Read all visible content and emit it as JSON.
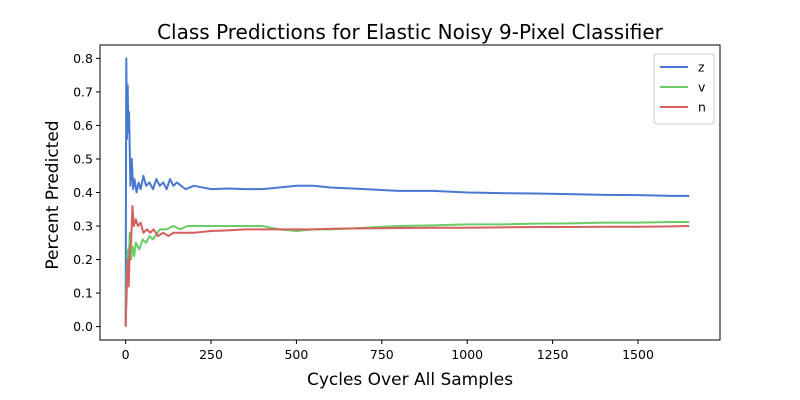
{
  "chart_data": {
    "type": "line",
    "title": "Class Predictions for Elastic Noisy 9-Pixel Classifier",
    "xlabel": "Cycles Over All Samples",
    "ylabel": "Percent Predicted",
    "xlim": [
      -75,
      1740
    ],
    "ylim": [
      -0.04,
      0.84
    ],
    "xticks": [
      0,
      250,
      500,
      750,
      1000,
      1250,
      1500
    ],
    "yticks": [
      0.0,
      0.1,
      0.2,
      0.3,
      0.4,
      0.5,
      0.6,
      0.7,
      0.8
    ],
    "xtick_labels": [
      "0",
      "250",
      "500",
      "750",
      "1000",
      "1250",
      "1500"
    ],
    "ytick_labels": [
      "0.0",
      "0.1",
      "0.2",
      "0.3",
      "0.4",
      "0.5",
      "0.6",
      "0.7",
      "0.8"
    ],
    "grid": false,
    "legend_position": "top-right",
    "series": [
      {
        "name": "z",
        "color": "#4878cf",
        "points": [
          [
            0,
            0.0
          ],
          [
            2,
            0.8
          ],
          [
            4,
            0.56
          ],
          [
            6,
            0.72
          ],
          [
            8,
            0.58
          ],
          [
            10,
            0.64
          ],
          [
            14,
            0.42
          ],
          [
            18,
            0.5
          ],
          [
            22,
            0.41
          ],
          [
            26,
            0.44
          ],
          [
            32,
            0.4
          ],
          [
            38,
            0.43
          ],
          [
            44,
            0.41
          ],
          [
            52,
            0.45
          ],
          [
            60,
            0.42
          ],
          [
            70,
            0.43
          ],
          [
            80,
            0.41
          ],
          [
            90,
            0.44
          ],
          [
            100,
            0.42
          ],
          [
            110,
            0.43
          ],
          [
            120,
            0.41
          ],
          [
            130,
            0.44
          ],
          [
            140,
            0.42
          ],
          [
            150,
            0.43
          ],
          [
            175,
            0.41
          ],
          [
            200,
            0.42
          ],
          [
            250,
            0.41
          ],
          [
            300,
            0.412
          ],
          [
            350,
            0.41
          ],
          [
            400,
            0.41
          ],
          [
            450,
            0.415
          ],
          [
            500,
            0.42
          ],
          [
            550,
            0.42
          ],
          [
            600,
            0.415
          ],
          [
            700,
            0.41
          ],
          [
            800,
            0.405
          ],
          [
            900,
            0.405
          ],
          [
            1000,
            0.4
          ],
          [
            1100,
            0.398
          ],
          [
            1200,
            0.397
          ],
          [
            1300,
            0.395
          ],
          [
            1400,
            0.393
          ],
          [
            1500,
            0.392
          ],
          [
            1600,
            0.39
          ],
          [
            1650,
            0.39
          ]
        ]
      },
      {
        "name": "v",
        "color": "#6acc65",
        "points": [
          [
            0,
            0.0
          ],
          [
            3,
            0.15
          ],
          [
            6,
            0.23
          ],
          [
            9,
            0.18
          ],
          [
            12,
            0.28
          ],
          [
            16,
            0.2
          ],
          [
            20,
            0.24
          ],
          [
            25,
            0.21
          ],
          [
            30,
            0.25
          ],
          [
            40,
            0.23
          ],
          [
            50,
            0.26
          ],
          [
            60,
            0.25
          ],
          [
            70,
            0.27
          ],
          [
            80,
            0.26
          ],
          [
            100,
            0.29
          ],
          [
            120,
            0.29
          ],
          [
            140,
            0.3
          ],
          [
            160,
            0.29
          ],
          [
            180,
            0.3
          ],
          [
            200,
            0.3
          ],
          [
            250,
            0.3
          ],
          [
            300,
            0.3
          ],
          [
            350,
            0.3
          ],
          [
            400,
            0.3
          ],
          [
            450,
            0.29
          ],
          [
            500,
            0.285
          ],
          [
            550,
            0.29
          ],
          [
            600,
            0.29
          ],
          [
            700,
            0.295
          ],
          [
            800,
            0.3
          ],
          [
            900,
            0.302
          ],
          [
            1000,
            0.305
          ],
          [
            1100,
            0.305
          ],
          [
            1200,
            0.307
          ],
          [
            1300,
            0.308
          ],
          [
            1400,
            0.31
          ],
          [
            1500,
            0.31
          ],
          [
            1600,
            0.312
          ],
          [
            1650,
            0.312
          ]
        ]
      },
      {
        "name": "n",
        "color": "#d65f5f",
        "points": [
          [
            0,
            0.0
          ],
          [
            3,
            0.1
          ],
          [
            6,
            0.2
          ],
          [
            9,
            0.12
          ],
          [
            12,
            0.23
          ],
          [
            16,
            0.25
          ],
          [
            20,
            0.36
          ],
          [
            24,
            0.3
          ],
          [
            30,
            0.32
          ],
          [
            36,
            0.3
          ],
          [
            44,
            0.31
          ],
          [
            52,
            0.28
          ],
          [
            62,
            0.29
          ],
          [
            72,
            0.28
          ],
          [
            82,
            0.29
          ],
          [
            95,
            0.27
          ],
          [
            110,
            0.28
          ],
          [
            125,
            0.27
          ],
          [
            140,
            0.28
          ],
          [
            160,
            0.28
          ],
          [
            180,
            0.28
          ],
          [
            200,
            0.28
          ],
          [
            250,
            0.285
          ],
          [
            300,
            0.287
          ],
          [
            350,
            0.29
          ],
          [
            400,
            0.29
          ],
          [
            450,
            0.29
          ],
          [
            500,
            0.29
          ],
          [
            550,
            0.29
          ],
          [
            600,
            0.292
          ],
          [
            700,
            0.293
          ],
          [
            800,
            0.294
          ],
          [
            900,
            0.295
          ],
          [
            1000,
            0.295
          ],
          [
            1100,
            0.296
          ],
          [
            1200,
            0.297
          ],
          [
            1300,
            0.297
          ],
          [
            1400,
            0.298
          ],
          [
            1500,
            0.298
          ],
          [
            1600,
            0.299
          ],
          [
            1650,
            0.3
          ]
        ]
      }
    ]
  }
}
